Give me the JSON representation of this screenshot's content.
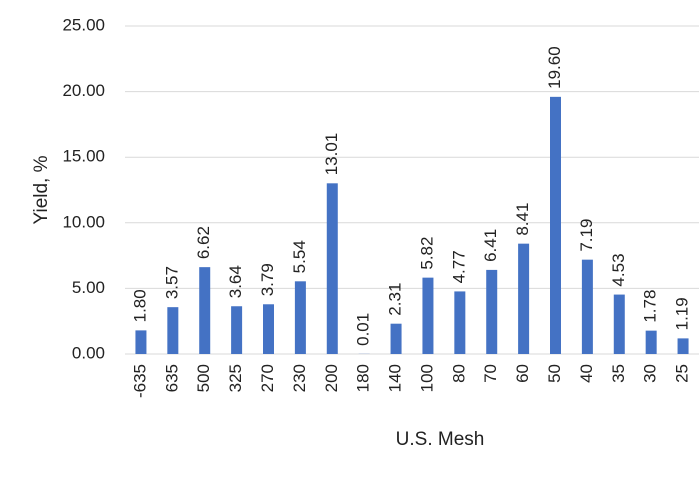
{
  "chart_data": {
    "type": "bar",
    "x_label": "U.S. Mesh",
    "y_label": "Yield, %",
    "categories": [
      "-635",
      "635",
      "500",
      "325",
      "270",
      "230",
      "200",
      "180",
      "140",
      "100",
      "80",
      "70",
      "60",
      "50",
      "40",
      "35",
      "30",
      "25"
    ],
    "values": [
      1.8,
      3.57,
      6.62,
      3.64,
      3.79,
      5.54,
      13.01,
      0.01,
      2.31,
      5.82,
      4.77,
      6.41,
      8.41,
      19.6,
      7.19,
      4.53,
      1.78,
      1.19
    ],
    "value_labels": [
      "1.80",
      "3.57",
      "6.62",
      "3.64",
      "3.79",
      "5.54",
      "13.01",
      "0.01",
      "2.31",
      "5.82",
      "4.77",
      "6.41",
      "8.41",
      "19.60",
      "7.19",
      "4.53",
      "1.78",
      "1.19"
    ],
    "color": "#4472c4",
    "ylim": [
      0,
      25
    ],
    "yticks": [
      {
        "value": 0,
        "label": "0.00"
      },
      {
        "value": 5,
        "label": "5.00"
      },
      {
        "value": 10,
        "label": "10.00"
      },
      {
        "value": 15,
        "label": "15.00"
      },
      {
        "value": 20,
        "label": "20.00"
      },
      {
        "value": 25,
        "label": "25.00"
      }
    ],
    "grid": true
  }
}
